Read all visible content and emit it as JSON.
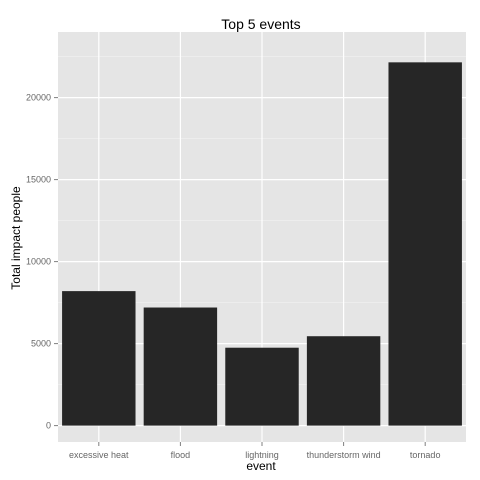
{
  "chart_data": {
    "type": "bar",
    "title": "Top 5 events",
    "xlabel": "event",
    "ylabel": "Total impact people",
    "categories": [
      "excessive heat",
      "flood",
      "lightning",
      "thunderstorm wind",
      "tornado"
    ],
    "values": [
      8200,
      7200,
      4750,
      5450,
      22150
    ],
    "ylim": [
      -1000,
      24000
    ],
    "yticks": [
      0,
      5000,
      10000,
      15000,
      20000
    ],
    "grid": true,
    "legend": "none",
    "colors": {
      "bar": "#262626",
      "panel_background": "#e5e5e5",
      "grid_major": "#ffffff",
      "grid_minor": "#f2f2f2"
    }
  }
}
